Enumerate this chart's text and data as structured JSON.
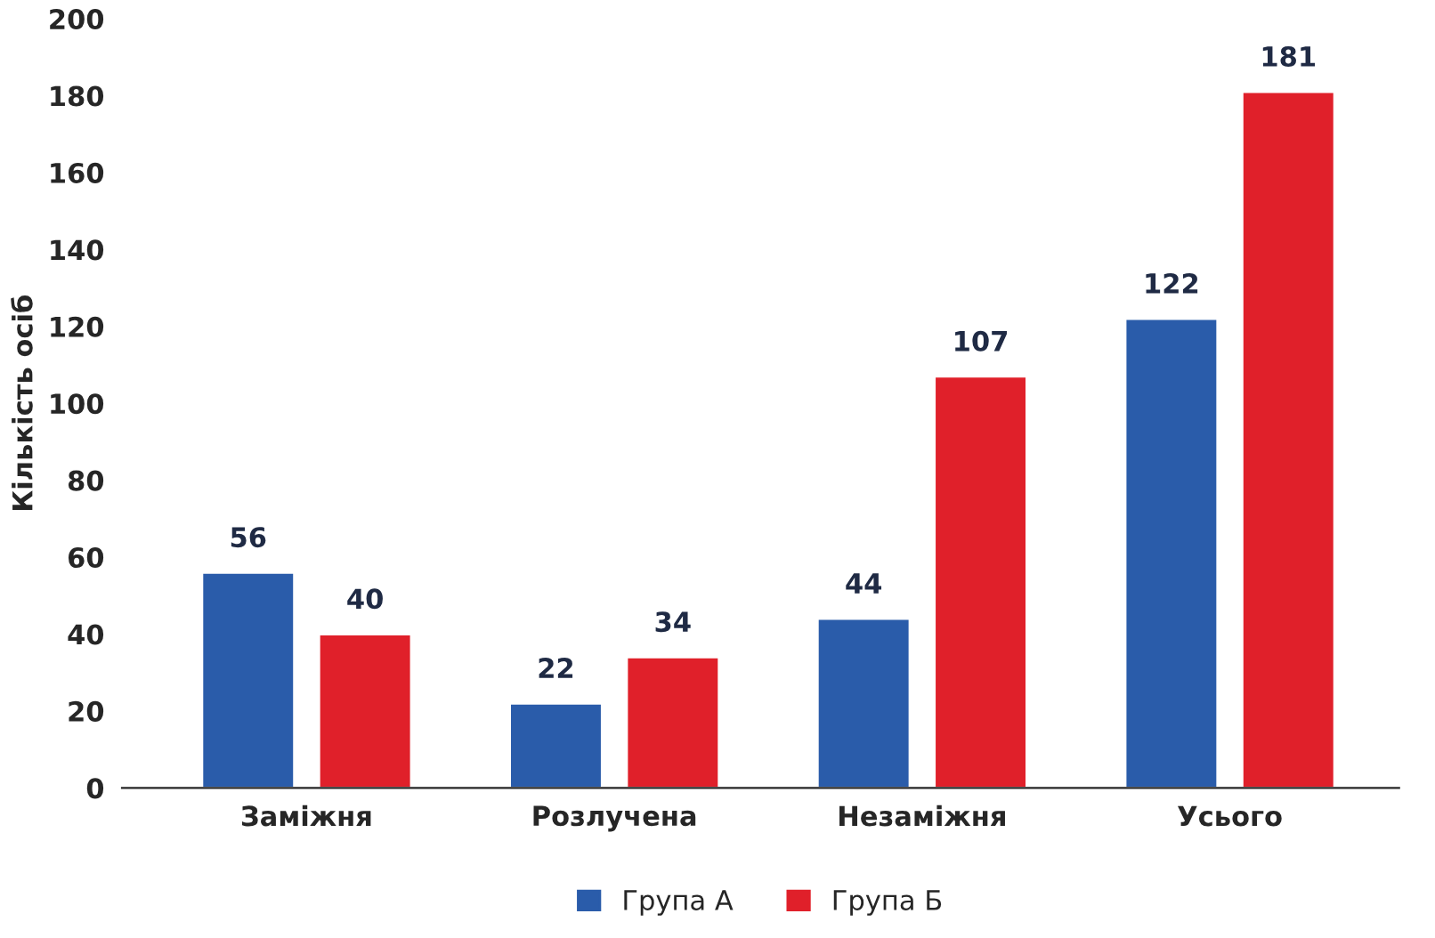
{
  "chart_data": {
    "type": "bar",
    "ylabel": "Кількість осіб",
    "categories": [
      "Заміжня",
      "Розлучена",
      "Незаміжня",
      "Усього"
    ],
    "series": [
      {
        "name": "Група А",
        "color": "#2a5caa",
        "values": [
          56,
          22,
          44,
          122
        ]
      },
      {
        "name": "Група Б",
        "color": "#e0202a",
        "values": [
          40,
          34,
          107,
          181
        ]
      }
    ],
    "ylim": [
      0,
      200
    ],
    "yticks": [
      0,
      20,
      40,
      60,
      80,
      100,
      120,
      140,
      160,
      180,
      200
    ],
    "data_labels": true,
    "grid": false,
    "legend": "bottom"
  }
}
